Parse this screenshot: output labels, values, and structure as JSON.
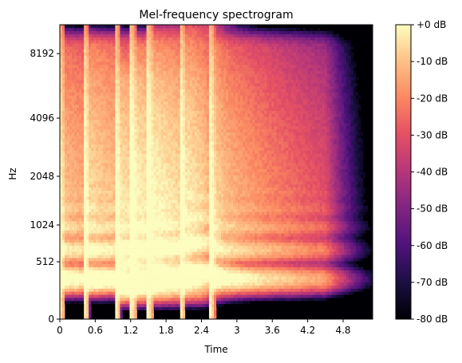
{
  "chart_data": {
    "type": "heatmap",
    "title": "Mel-frequency spectrogram",
    "xlabel": "Time",
    "ylabel": "Hz",
    "xlim": [
      0,
      5.3
    ],
    "x_ticks": [
      0,
      0.6,
      1.2,
      1.8,
      2.4,
      3,
      3.6,
      4.2,
      4.8
    ],
    "x_tick_labels": [
      "0",
      "0.6",
      "1.2",
      "1.8",
      "2.4",
      "3",
      "3.6",
      "4.2",
      "4.8"
    ],
    "y_scale": "mel",
    "ylim": [
      0,
      11025
    ],
    "y_ticks": [
      0,
      512,
      1024,
      2048,
      4096,
      8192
    ],
    "y_tick_labels": [
      "0",
      "512",
      "1024",
      "2048",
      "4096",
      "8192"
    ],
    "colorbar": {
      "label_format": "%+2.0f dB",
      "range": [
        -80,
        0
      ],
      "ticks": [
        0,
        -10,
        -20,
        -30,
        -40,
        -50,
        -60,
        -70,
        -80
      ],
      "tick_labels": [
        "+0 dB",
        "-10 dB",
        "-20 dB",
        "-30 dB",
        "-40 dB",
        "-50 dB",
        "-60 dB",
        "-70 dB",
        "-80 dB"
      ],
      "colormap": "magma"
    },
    "notes": [
      {
        "onset_s": 0.0,
        "f0_hz": 330,
        "end_s": 1.9
      },
      {
        "onset_s": 0.42,
        "f0_hz": 330,
        "end_s": 2.1
      },
      {
        "onset_s": 0.95,
        "f0_hz": 247,
        "end_s": 2.4
      },
      {
        "onset_s": 1.22,
        "f0_hz": 330,
        "end_s": 2.3
      },
      {
        "onset_s": 1.5,
        "f0_hz": 370,
        "end_s": 2.4
      },
      {
        "onset_s": 2.05,
        "f0_hz": 392,
        "end_s": 2.6
      },
      {
        "onset_s": 2.55,
        "f0_hz": 330,
        "end_s": 4.5
      }
    ],
    "grid": false,
    "legend": "colorbar-right"
  }
}
